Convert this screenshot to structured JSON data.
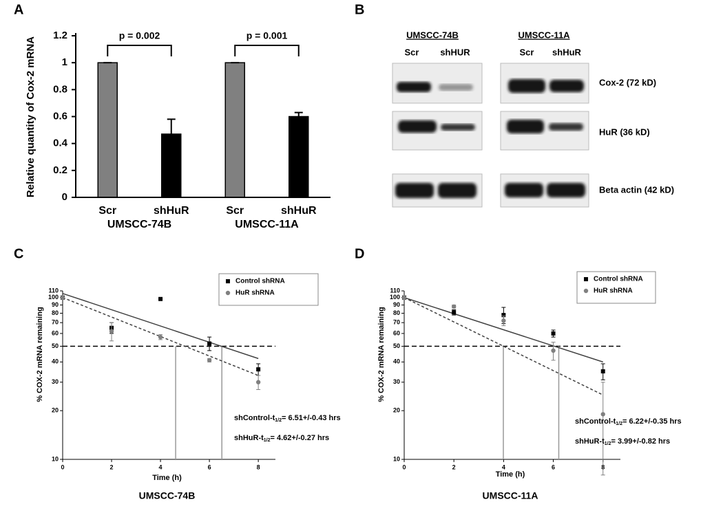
{
  "chart_data": [
    {
      "type": "bar",
      "panel_label": "A",
      "ylabel": "Relative quantity of Cox-2 mRNA",
      "categories": [
        "Scr",
        "shHuR",
        "Scr",
        "shHuR"
      ],
      "groups": [
        "UMSCC-74B",
        "UMSCC-11A"
      ],
      "values": [
        1,
        0.47,
        1,
        0.6
      ],
      "errors": [
        0,
        0.11,
        0,
        0.03
      ],
      "colors": [
        "#808080",
        "#000000",
        "#808080",
        "#000000"
      ],
      "ylim": [
        0,
        1.2
      ],
      "yticks": [
        0,
        0.2,
        0.4,
        0.6,
        0.8,
        1,
        1.2
      ],
      "annotations": [
        "p = 0.002",
        "p = 0.001"
      ]
    },
    {
      "type": "scatter",
      "panel_label": "C",
      "subtitle": "UMSCC-74B",
      "xlabel": "Time (h)",
      "ylabel": "% COX-2 mRNA remaining",
      "log_y": true,
      "xlim": [
        0,
        8.7
      ],
      "ylim": [
        10,
        110
      ],
      "xticks": [
        0,
        2,
        4,
        6,
        8
      ],
      "yticks": [
        10,
        20,
        30,
        40,
        50,
        60,
        70,
        80,
        90,
        100,
        110
      ],
      "legend": "upper right",
      "series": [
        {
          "name": "Control shRNA",
          "color": "#000000",
          "marker": "square",
          "x": [
            0,
            2,
            4,
            6,
            8
          ],
          "values": [
            100,
            65,
            98,
            52,
            36
          ],
          "errors": [
            0,
            5,
            0,
            5,
            3
          ]
        },
        {
          "name": "HuR shRNA",
          "color": "#808080",
          "marker": "circle",
          "x": [
            0,
            2,
            4,
            6,
            8
          ],
          "values": [
            100,
            62,
            57,
            41,
            30
          ],
          "errors": [
            0,
            8,
            2,
            1,
            3
          ]
        }
      ],
      "fit_lines": [
        {
          "color": "#404040",
          "dash": false,
          "x": [
            0,
            8
          ],
          "values": [
            106,
            42
          ]
        },
        {
          "color": "#404040",
          "dash": true,
          "x": [
            0,
            8
          ],
          "values": [
            100,
            33
          ]
        }
      ],
      "half_life_line": 50,
      "half_life_x": [
        6.51,
        4.62
      ],
      "annotations": [
        {
          "text": "shControl-t",
          "sub": "1/2",
          "rest": "= 6.51+/-0.43 hrs"
        },
        {
          "text": "shHuR-t",
          "sub": "1/2",
          "rest": "= 4.62+/-0.27 hrs"
        }
      ]
    },
    {
      "type": "scatter",
      "panel_label": "D",
      "subtitle": "UMSCC-11A",
      "xlabel": "Time (h)",
      "ylabel": "% COX-2 mRNA remaining",
      "log_y": true,
      "xlim": [
        0,
        8.7
      ],
      "ylim": [
        10,
        110
      ],
      "xticks": [
        0,
        2,
        4,
        6,
        8
      ],
      "yticks": [
        10,
        20,
        30,
        40,
        50,
        60,
        70,
        80,
        90,
        100,
        110
      ],
      "legend": "upper right",
      "series": [
        {
          "name": "Control shRNA",
          "color": "#000000",
          "marker": "square",
          "x": [
            0,
            2,
            4,
            6,
            8
          ],
          "values": [
            100,
            81,
            78,
            60,
            35
          ],
          "errors": [
            0,
            3,
            9,
            3,
            4
          ]
        },
        {
          "name": "HuR shRNA",
          "color": "#808080",
          "marker": "circle",
          "x": [
            0,
            2,
            4,
            6,
            8
          ],
          "values": [
            100,
            88,
            72,
            47,
            19
          ],
          "errors": [
            0,
            2,
            5,
            6,
            11
          ]
        }
      ],
      "fit_lines": [
        {
          "color": "#404040",
          "dash": false,
          "x": [
            0,
            8
          ],
          "values": [
            100,
            40
          ]
        },
        {
          "color": "#404040",
          "dash": true,
          "x": [
            0,
            8
          ],
          "values": [
            100,
            25
          ]
        }
      ],
      "half_life_line": 50,
      "half_life_x": [
        6.22,
        3.99
      ],
      "annotations": [
        {
          "text": "shControl-t",
          "sub": "1/2",
          "rest": "= 6.22+/-0.35 hrs"
        },
        {
          "text": "shHuR-t",
          "sub": "1/2",
          "rest": "= 3.99+/-0.82 hrs"
        }
      ]
    }
  ],
  "blot": {
    "panel_label": "B",
    "cell_lines": [
      "UMSCC-74B",
      "UMSCC-11A"
    ],
    "lanes": [
      "Scr",
      "shHUR",
      "Scr",
      "shHuR"
    ],
    "proteins": [
      "Cox-2 (72 kD)",
      "HuR (36 kD)",
      "Beta actin (42 kD)"
    ]
  }
}
